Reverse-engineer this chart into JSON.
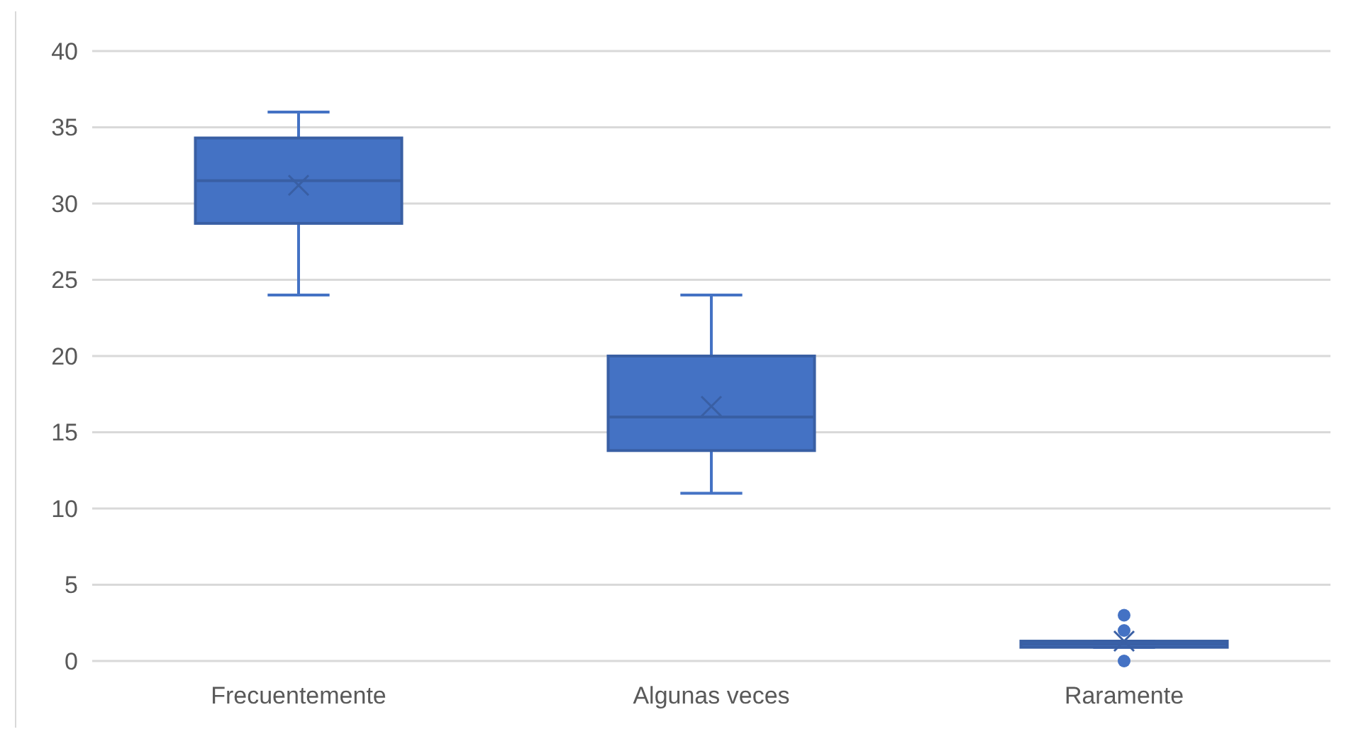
{
  "chart_data": {
    "type": "box",
    "categories": [
      "Frecuentemente",
      "Algunas veces",
      "Raramente"
    ],
    "boxes": [
      {
        "low": 24,
        "q1": 28.7,
        "median": 31.5,
        "q3": 34.3,
        "high": 36,
        "mean": 31.2
      },
      {
        "low": 11,
        "q1": 13.8,
        "median": 16,
        "q3": 20,
        "high": 24,
        "mean": 16.7
      },
      {
        "low": 0.9,
        "q1": 0.9,
        "median": 1.1,
        "q3": 1.3,
        "high": 1.3,
        "mean": 1.3,
        "outliers": [
          3,
          2,
          0
        ]
      }
    ],
    "color": "#4472c4",
    "ylim": [
      0,
      40
    ],
    "yticks": [
      0,
      5,
      10,
      15,
      20,
      25,
      30,
      35,
      40
    ],
    "grid": "y",
    "marker": "cross"
  }
}
